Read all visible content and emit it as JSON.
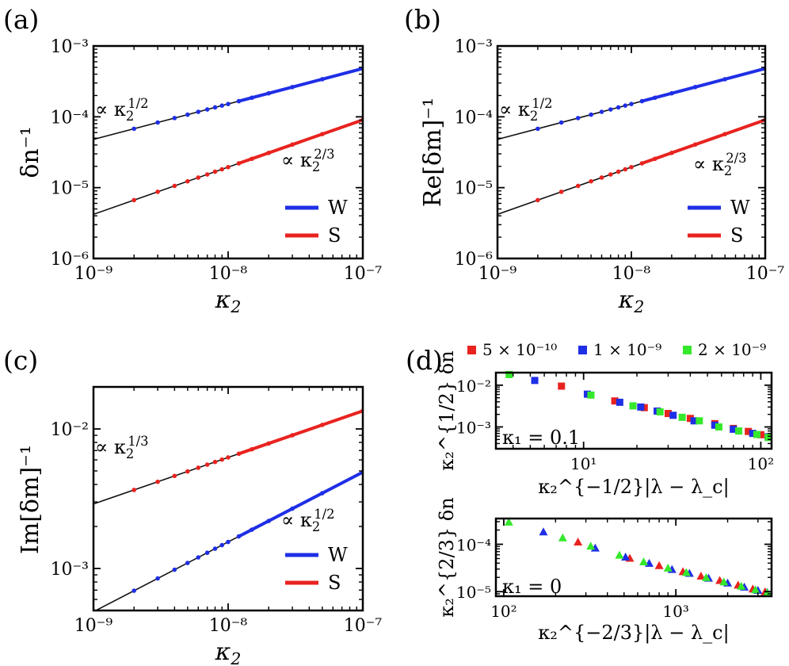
{
  "panels": [
    {
      "label": "(a)",
      "type": "line",
      "xlabel": "κ₂",
      "ylabel": "δn⁻¹",
      "xlim": [
        1e-09,
        1e-07
      ],
      "ylim": [
        1e-06,
        0.001
      ],
      "xticks": [
        "10⁻⁹",
        "10⁻⁸",
        "10⁻⁷"
      ],
      "yticks": [
        "10⁻³",
        "10⁻⁴",
        "10⁻⁵",
        "10⁻⁶"
      ],
      "annotations": [
        "∝ κ₂^{1/2}",
        "∝ κ₂^{2/3}"
      ],
      "series": [
        {
          "name": "W",
          "color": "#1f2fe6",
          "slope": 0.5,
          "y_at_1e-9": 4.8e-05,
          "x_points": [
            2e-09,
            3e-09,
            4e-09,
            5e-09,
            6e-09,
            7e-09,
            8e-09,
            9e-09,
            1e-08,
            1.2e-08,
            1.5e-08,
            2e-08,
            3e-08,
            5e-08,
            1e-07
          ]
        },
        {
          "name": "S",
          "color": "#e8231f",
          "slope": 0.6667,
          "y_at_1e-9": 4.2e-06,
          "x_points": [
            2e-09,
            3e-09,
            4e-09,
            5e-09,
            6e-09,
            7e-09,
            8e-09,
            9e-09,
            1e-08,
            1.2e-08,
            1.5e-08,
            2e-08,
            3e-08,
            5e-08,
            1e-07
          ]
        }
      ],
      "legend": [
        "W",
        "S"
      ]
    },
    {
      "label": "(b)",
      "type": "line",
      "xlabel": "κ₂",
      "ylabel": "Re[δm]⁻¹",
      "xlim": [
        1e-09,
        1e-07
      ],
      "ylim": [
        1e-06,
        0.001
      ],
      "xticks": [
        "10⁻⁹",
        "10⁻⁸",
        "10⁻⁷"
      ],
      "yticks": [
        "10⁻³",
        "10⁻⁴",
        "10⁻⁵",
        "10⁻⁶"
      ],
      "annotations": [
        "∝ κ₂^{1/2}",
        "∝ κ₂^{2/3}"
      ],
      "series": [
        {
          "name": "W",
          "color": "#1f2fe6",
          "slope": 0.5,
          "y_at_1e-9": 4.8e-05,
          "x_points": [
            2e-09,
            3e-09,
            4e-09,
            5e-09,
            6e-09,
            7e-09,
            8e-09,
            9e-09,
            1e-08,
            1.2e-08,
            1.5e-08,
            2e-08,
            3e-08,
            5e-08,
            1e-07
          ]
        },
        {
          "name": "S",
          "color": "#e8231f",
          "slope": 0.6667,
          "y_at_1e-9": 4.2e-06,
          "x_points": [
            2e-09,
            3e-09,
            4e-09,
            5e-09,
            6e-09,
            7e-09,
            8e-09,
            9e-09,
            1e-08,
            1.2e-08,
            1.5e-08,
            2e-08,
            3e-08,
            5e-08,
            1e-07
          ]
        }
      ],
      "legend": [
        "W",
        "S"
      ]
    },
    {
      "label": "(c)",
      "type": "line",
      "xlabel": "κ₂",
      "ylabel": "Im[δm]⁻¹",
      "xlim": [
        1e-09,
        1e-07
      ],
      "ylim": [
        0.0005,
        0.02
      ],
      "xticks": [
        "10⁻⁹",
        "10⁻⁸",
        "10⁻⁷"
      ],
      "yticks": [
        "10⁻²",
        "10⁻³"
      ],
      "annotations": [
        "∝ κ₂^{1/3}",
        "∝ κ₂^{1/2}"
      ],
      "series": [
        {
          "name": "S",
          "color": "#e8231f",
          "slope": 0.3333,
          "y_at_1e-9": 0.0029,
          "x_points": [
            2e-09,
            3e-09,
            4e-09,
            5e-09,
            6e-09,
            7e-09,
            8e-09,
            9e-09,
            1e-08,
            1.2e-08,
            1.5e-08,
            2e-08,
            3e-08,
            5e-08,
            1e-07
          ]
        },
        {
          "name": "W",
          "color": "#1f2fe6",
          "slope": 0.5,
          "y_at_1e-9": 0.00049,
          "x_points": [
            2e-09,
            3e-09,
            4e-09,
            5e-09,
            6e-09,
            7e-09,
            8e-09,
            9e-09,
            1e-08,
            1.2e-08,
            1.5e-08,
            2e-08,
            3e-08,
            5e-08,
            1e-07
          ]
        }
      ],
      "legend": [
        "W",
        "S"
      ]
    }
  ],
  "panel_d": {
    "label": "(d)",
    "legend": [
      {
        "text": "5 × 10⁻¹⁰",
        "color": "#e8231f"
      },
      {
        "text": "1 × 10⁻⁹",
        "color": "#1f2fe6"
      },
      {
        "text": "2 × 10⁻⁹",
        "color": "#35e82c"
      }
    ],
    "top": {
      "type": "scatter",
      "marker": "square",
      "kappa1": "κ₁ = 0.1",
      "ylabel": "κ₂^{1/2} δn",
      "xlabel": "κ₂^{−1/2}|λ − λ_c|",
      "xlim": [
        3.2,
        115
      ],
      "ylim": [
        0.0003,
        0.02
      ],
      "xticks": [
        "10¹",
        "10²"
      ],
      "yticks": [
        "10⁻²",
        "10⁻³"
      ],
      "series": [
        {
          "name": "5 × 10⁻¹⁰",
          "color": "#e8231f",
          "points": [
            [
              7.5,
              0.0095
            ],
            [
              15,
              0.0042
            ],
            [
              22,
              0.0029
            ],
            [
              30,
              0.0021
            ],
            [
              40,
              0.0016
            ],
            [
              55,
              0.0012
            ],
            [
              70,
              0.00092
            ],
            [
              85,
              0.00078
            ],
            [
              100,
              0.00065
            ],
            [
              110,
              0.00058
            ]
          ]
        },
        {
          "name": "1 × 10⁻⁹",
          "color": "#1f2fe6",
          "points": [
            [
              5.3,
              0.013
            ],
            [
              10.5,
              0.0061
            ],
            [
              16,
              0.0039
            ],
            [
              21,
              0.003
            ],
            [
              26,
              0.0024
            ],
            [
              32,
              0.0019
            ],
            [
              42,
              0.0014
            ],
            [
              55,
              0.0011
            ],
            [
              70,
              0.00088
            ],
            [
              90,
              0.0007
            ],
            [
              110,
              0.00058
            ]
          ]
        },
        {
          "name": "2 × 10⁻⁹",
          "color": "#35e82c",
          "points": [
            [
              3.8,
              0.018
            ],
            [
              11,
              0.0058
            ],
            [
              19,
              0.0032
            ],
            [
              27,
              0.0023
            ],
            [
              36,
              0.0017
            ],
            [
              45,
              0.0014
            ],
            [
              58,
              0.001
            ],
            [
              75,
              0.0008
            ],
            [
              95,
              0.00066
            ],
            [
              110,
              0.00056
            ]
          ]
        }
      ]
    },
    "bottom": {
      "type": "scatter",
      "marker": "triangle",
      "kappa1": "κ₁ = 0",
      "ylabel": "κ₂^{2/3} δn",
      "xlabel": "κ₂^{−2/3}|λ − λ_c|",
      "xlim": [
        90,
        3600
      ],
      "ylim": [
        8e-06,
        0.00035
      ],
      "xticks": [
        "10²",
        "10³"
      ],
      "yticks": [
        "10⁻⁴",
        "10⁻⁵"
      ],
      "series": [
        {
          "name": "5 × 10⁻¹⁰",
          "color": "#e8231f",
          "points": [
            [
              270,
              0.00011
            ],
            [
              540,
              5e-05
            ],
            [
              800,
              3.5e-05
            ],
            [
              1100,
              2.6e-05
            ],
            [
              1400,
              2.1e-05
            ],
            [
              1800,
              1.7e-05
            ],
            [
              2300,
              1.35e-05
            ],
            [
              2800,
              1.12e-05
            ],
            [
              3300,
              9.8e-06
            ]
          ]
        },
        {
          "name": "1 × 10⁻⁹",
          "color": "#1f2fe6",
          "points": [
            [
              170,
              0.00018
            ],
            [
              340,
              8.2e-05
            ],
            [
              510,
              5.3e-05
            ],
            [
              700,
              3.9e-05
            ],
            [
              950,
              2.9e-05
            ],
            [
              1200,
              2.4e-05
            ],
            [
              1550,
              1.9e-05
            ],
            [
              2000,
              1.5e-05
            ],
            [
              2500,
              1.23e-05
            ],
            [
              3000,
              1.05e-05
            ],
            [
              3400,
              9.5e-06
            ]
          ]
        },
        {
          "name": "2 × 10⁻⁹",
          "color": "#35e82c",
          "points": [
            [
              107,
              0.00029
            ],
            [
              220,
              0.000135
            ],
            [
              320,
              9e-05
            ],
            [
              470,
              5.8e-05
            ],
            [
              650,
              4.2e-05
            ],
            [
              900,
              3.1e-05
            ],
            [
              1150,
              2.5e-05
            ],
            [
              1500,
              1.95e-05
            ],
            [
              1900,
              1.58e-05
            ],
            [
              2400,
              1.28e-05
            ],
            [
              2900,
              1.08e-05
            ],
            [
              3400,
              9.4e-06
            ]
          ]
        }
      ]
    }
  }
}
